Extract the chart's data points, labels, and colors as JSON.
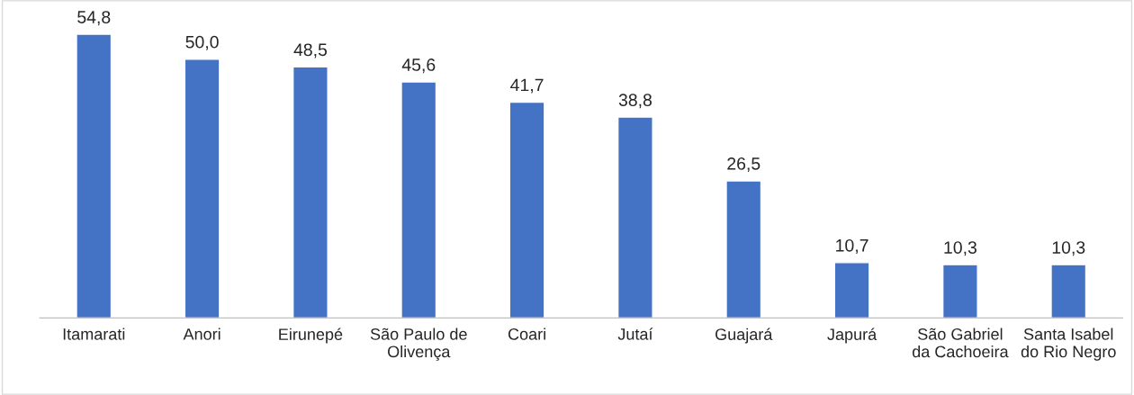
{
  "chart_data": {
    "type": "bar",
    "categories": [
      "Itamarati",
      "Anori",
      "Eirunepé",
      "São Paulo de\nOlivença",
      "Coari",
      "Jutaí",
      "Guajará",
      "Japurá",
      "São Gabriel\nda Cachoeira",
      "Santa Isabel\ndo Rio Negro"
    ],
    "values": [
      54.8,
      50.0,
      48.5,
      45.6,
      41.7,
      38.8,
      26.5,
      10.7,
      10.3,
      10.3
    ],
    "value_labels": [
      "54,8",
      "50,0",
      "48,5",
      "45,6",
      "41,7",
      "38,8",
      "26,5",
      "10,7",
      "10,3",
      "10,3"
    ],
    "color": "#4472c4",
    "grid": false,
    "legend": false
  }
}
